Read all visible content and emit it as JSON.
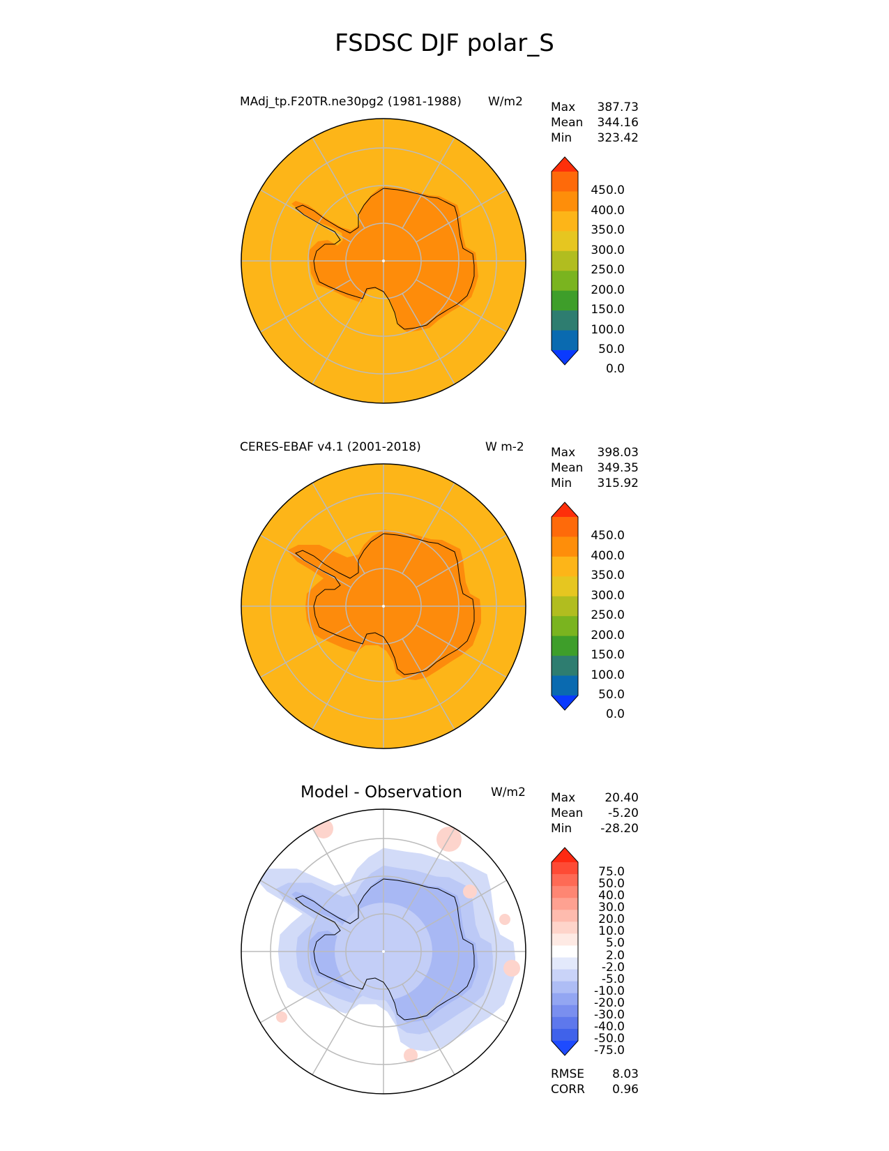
{
  "title": "FSDSC DJF polar_S",
  "colors": {
    "ocean": "#FDB518",
    "land_model": "#FE8C0A",
    "land_obs": "#FD8B0C",
    "diff_neg": "#A8B8F4",
    "diff_neg_light": "#D2DBF8",
    "diff_pos": "#FDD4CC",
    "grid": "#BBBBBB"
  },
  "panels": [
    {
      "name": "model",
      "left_title": "MAdj_tp.F20TR.ne30pg2 (1981-1988)",
      "center_title": "",
      "units": "W/m2",
      "stats": [
        {
          "label": "Max",
          "value": "387.73"
        },
        {
          "label": "Mean",
          "value": "344.16"
        },
        {
          "label": "Min",
          "value": "323.42"
        }
      ],
      "colorbar_ticks": [
        "450.0",
        "400.0",
        "350.0",
        "300.0",
        "250.0",
        "200.0",
        "150.0",
        "100.0",
        "50.0",
        "0.0"
      ],
      "colorbar_colors": [
        "#FE2F0A",
        "#FE6A0A",
        "#FE8E0A",
        "#FDB518",
        "#E6C620",
        "#B1BD1F",
        "#7AB41F",
        "#3E9E2A",
        "#2E7D70",
        "#0A6AB0",
        "#0A3AFE"
      ]
    },
    {
      "name": "observation",
      "left_title": "CERES-EBAF v4.1 (2001-2018)",
      "center_title": "",
      "units": "W m-2",
      "stats": [
        {
          "label": "Max",
          "value": "398.03"
        },
        {
          "label": "Mean",
          "value": "349.35"
        },
        {
          "label": "Min",
          "value": "315.92"
        }
      ],
      "colorbar_ticks": [
        "450.0",
        "400.0",
        "350.0",
        "300.0",
        "250.0",
        "200.0",
        "150.0",
        "100.0",
        "50.0",
        "0.0"
      ],
      "colorbar_colors": [
        "#FE2F0A",
        "#FE6A0A",
        "#FE8E0A",
        "#FDB518",
        "#E6C620",
        "#B1BD1F",
        "#7AB41F",
        "#3E9E2A",
        "#2E7D70",
        "#0A6AB0",
        "#0A3AFE"
      ]
    },
    {
      "name": "difference",
      "left_title": "",
      "center_title": "Model - Observation",
      "units": "W/m2",
      "stats": [
        {
          "label": "Max",
          "value": "20.40"
        },
        {
          "label": "Mean",
          "value": "-5.20"
        },
        {
          "label": "Min",
          "value": "-28.20"
        }
      ],
      "colorbar_ticks": [
        "75.0",
        "50.0",
        "40.0",
        "30.0",
        "20.0",
        "10.0",
        "5.0",
        "2.0",
        "-2.0",
        "-5.0",
        "-10.0",
        "-20.0",
        "-30.0",
        "-40.0",
        "-50.0",
        "-75.0"
      ],
      "colorbar_colors": [
        "#FE2A12",
        "#FE4B35",
        "#FE6A55",
        "#FE8673",
        "#FEA191",
        "#FEBBAE",
        "#FED4CA",
        "#FEEAE4",
        "#FFFFFF",
        "#E3E9FB",
        "#C9D3F8",
        "#AEBDF5",
        "#93A6F2",
        "#7A8FEF",
        "#5E78EC",
        "#4062EA",
        "#1E4BFE"
      ],
      "metrics": [
        {
          "label": "RMSE",
          "value": "8.03"
        },
        {
          "label": "CORR",
          "value": "0.96"
        }
      ]
    }
  ],
  "chart_data": [
    {
      "type": "heatmap",
      "projection": "south-polar-stereographic",
      "title": "MAdj_tp.F20TR.ne30pg2 (1981-1988)",
      "units": "W/m2",
      "stats": {
        "max": 387.73,
        "mean": 344.16,
        "min": 323.42
      },
      "levels": [
        0,
        50,
        100,
        150,
        200,
        250,
        300,
        350,
        400,
        450
      ],
      "extend": "both"
    },
    {
      "type": "heatmap",
      "projection": "south-polar-stereographic",
      "title": "CERES-EBAF v4.1 (2001-2018)",
      "units": "W m-2",
      "stats": {
        "max": 398.03,
        "mean": 349.35,
        "min": 315.92
      },
      "levels": [
        0,
        50,
        100,
        150,
        200,
        250,
        300,
        350,
        400,
        450
      ],
      "extend": "both"
    },
    {
      "type": "heatmap",
      "projection": "south-polar-stereographic",
      "title": "Model - Observation",
      "units": "W/m2",
      "stats": {
        "max": 20.4,
        "mean": -5.2,
        "min": -28.2
      },
      "levels": [
        -75,
        -50,
        -40,
        -30,
        -20,
        -10,
        -5,
        -2,
        2,
        5,
        10,
        20,
        30,
        40,
        50,
        75
      ],
      "extend": "both",
      "rmse": 8.03,
      "corr": 0.96
    }
  ]
}
